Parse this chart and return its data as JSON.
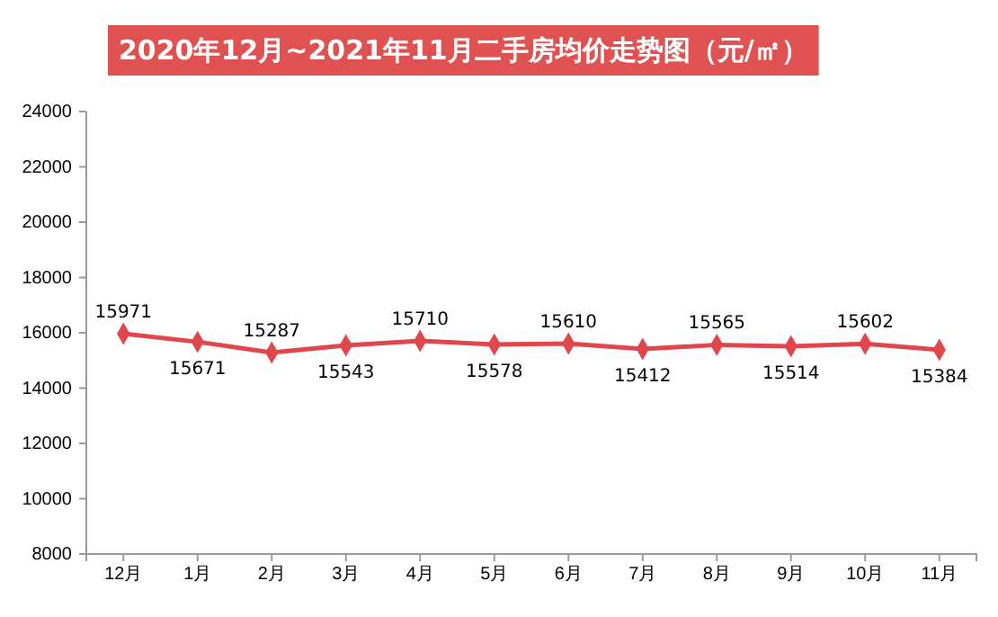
{
  "chart_data": {
    "type": "line",
    "title": "2020年12月~2021年11月二手房均价走势图（元/㎡）",
    "categories": [
      "12月",
      "1月",
      "2月",
      "3月",
      "4月",
      "5月",
      "6月",
      "7月",
      "8月",
      "9月",
      "10月",
      "11月"
    ],
    "series": [
      {
        "color": "#e0474c",
        "values": [
          15971,
          15671,
          15287,
          15543,
          15710,
          15578,
          15610,
          15412,
          15565,
          15514,
          15602,
          15384
        ]
      }
    ],
    "ylim": [
      8000,
      24000
    ],
    "yticks": [
      8000,
      10000,
      12000,
      14000,
      16000,
      18000,
      20000,
      22000,
      24000
    ],
    "grid": false,
    "marker": "diamond",
    "line_style": "solid",
    "data_labels": true
  }
}
